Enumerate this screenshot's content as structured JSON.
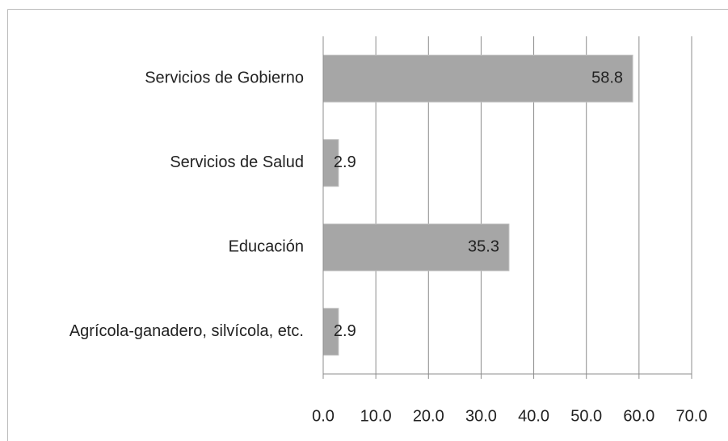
{
  "chart_data": {
    "type": "bar",
    "orientation": "horizontal",
    "categories": [
      "Servicios de Gobierno",
      "Servicios de Salud",
      "Educación",
      "Agrícola-ganadero, silvícola, etc."
    ],
    "values": [
      58.8,
      2.9,
      35.3,
      2.9
    ],
    "color": "#a6a6a6",
    "xlim": [
      0,
      70
    ],
    "xticks": [
      {
        "value": 0,
        "label": "0.0"
      },
      {
        "value": 10,
        "label": "10.0"
      },
      {
        "value": 20,
        "label": "20.0"
      },
      {
        "value": 30,
        "label": "30.0"
      },
      {
        "value": 40,
        "label": "40.0"
      },
      {
        "value": 50,
        "label": "50.0"
      },
      {
        "value": 60,
        "label": "60.0"
      },
      {
        "value": 70,
        "label": "70.0"
      }
    ],
    "grid": true
  }
}
